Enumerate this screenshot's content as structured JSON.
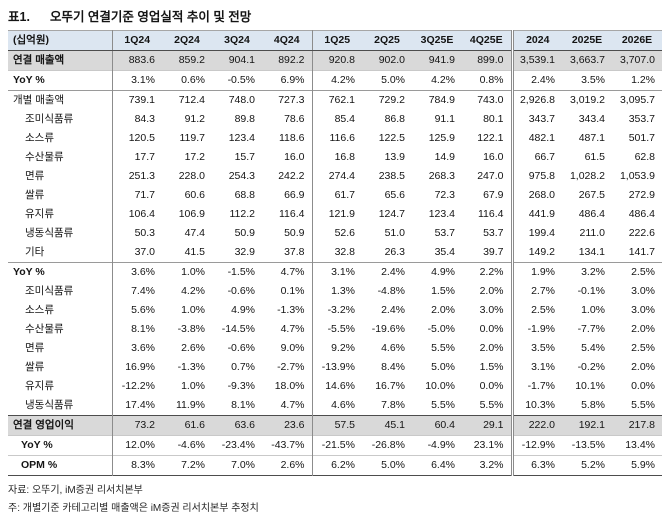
{
  "header": {
    "table_no": "표1.",
    "title": "오뚜기 연결기준 영업실적 추이 및 전망"
  },
  "colors": {
    "header_bg": "#dce6f1",
    "highlight_bg": "#d9d9d9"
  },
  "table": {
    "unit_label": "(십억원)",
    "columns": [
      "1Q24",
      "2Q24",
      "3Q24",
      "4Q24",
      "1Q25",
      "2Q25",
      "3Q25E",
      "4Q25E",
      "2024",
      "2025E",
      "2026E"
    ],
    "rows": [
      {
        "label": "연결 매출액",
        "style": "total",
        "rule": "none",
        "values": [
          "883.6",
          "859.2",
          "904.1",
          "892.2",
          "920.8",
          "902.0",
          "941.9",
          "899.0",
          "3,539.1",
          "3,663.7",
          "3,707.0"
        ]
      },
      {
        "label": "YoY %",
        "style": "yoy",
        "rule": "light",
        "values": [
          "3.1%",
          "0.6%",
          "-0.5%",
          "6.9%",
          "4.2%",
          "5.0%",
          "4.2%",
          "0.8%",
          "2.4%",
          "3.5%",
          "1.2%"
        ]
      },
      {
        "label": "개별 매출액",
        "style": "plain",
        "rule": "med",
        "values": [
          "739.1",
          "712.4",
          "748.0",
          "727.3",
          "762.1",
          "729.2",
          "784.9",
          "743.0",
          "2,926.8",
          "3,019.2",
          "3,095.7"
        ]
      },
      {
        "label": "조미식품류",
        "style": "sub",
        "rule": "none",
        "values": [
          "84.3",
          "91.2",
          "89.8",
          "78.6",
          "85.4",
          "86.8",
          "91.1",
          "80.1",
          "343.7",
          "343.4",
          "353.7"
        ]
      },
      {
        "label": "소스류",
        "style": "sub",
        "rule": "none",
        "values": [
          "120.5",
          "119.7",
          "123.4",
          "118.6",
          "116.6",
          "122.5",
          "125.9",
          "122.1",
          "482.1",
          "487.1",
          "501.7"
        ]
      },
      {
        "label": "수산물류",
        "style": "sub",
        "rule": "none",
        "values": [
          "17.7",
          "17.2",
          "15.7",
          "16.0",
          "16.8",
          "13.9",
          "14.9",
          "16.0",
          "66.7",
          "61.5",
          "62.8"
        ]
      },
      {
        "label": "면류",
        "style": "sub",
        "rule": "none",
        "values": [
          "251.3",
          "228.0",
          "254.3",
          "242.2",
          "274.4",
          "238.5",
          "268.3",
          "247.0",
          "975.8",
          "1,028.2",
          "1,053.9"
        ]
      },
      {
        "label": "쌀류",
        "style": "sub",
        "rule": "none",
        "values": [
          "71.7",
          "60.6",
          "68.8",
          "66.9",
          "61.7",
          "65.6",
          "72.3",
          "67.9",
          "268.0",
          "267.5",
          "272.9"
        ]
      },
      {
        "label": "유지류",
        "style": "sub",
        "rule": "none",
        "values": [
          "106.4",
          "106.9",
          "112.2",
          "116.4",
          "121.9",
          "124.7",
          "123.4",
          "116.4",
          "441.9",
          "486.4",
          "486.4"
        ]
      },
      {
        "label": "냉동식품류",
        "style": "sub",
        "rule": "none",
        "values": [
          "50.3",
          "47.4",
          "50.9",
          "50.9",
          "52.6",
          "51.0",
          "53.7",
          "53.7",
          "199.4",
          "211.0",
          "222.6"
        ]
      },
      {
        "label": "기타",
        "style": "sub",
        "rule": "none",
        "values": [
          "37.0",
          "41.5",
          "32.9",
          "37.8",
          "32.8",
          "26.3",
          "35.4",
          "39.7",
          "149.2",
          "134.1",
          "141.7"
        ]
      },
      {
        "label": "YoY %",
        "style": "yoy",
        "rule": "med",
        "values": [
          "3.6%",
          "1.0%",
          "-1.5%",
          "4.7%",
          "3.1%",
          "2.4%",
          "4.9%",
          "2.2%",
          "1.9%",
          "3.2%",
          "2.5%"
        ]
      },
      {
        "label": "조미식품류",
        "style": "sub",
        "rule": "none",
        "values": [
          "7.4%",
          "4.2%",
          "-0.6%",
          "0.1%",
          "1.3%",
          "-4.8%",
          "1.5%",
          "2.0%",
          "2.7%",
          "-0.1%",
          "3.0%"
        ]
      },
      {
        "label": "소스류",
        "style": "sub",
        "rule": "none",
        "values": [
          "5.6%",
          "1.0%",
          "4.9%",
          "-1.3%",
          "-3.2%",
          "2.4%",
          "2.0%",
          "3.0%",
          "2.5%",
          "1.0%",
          "3.0%"
        ]
      },
      {
        "label": "수산물류",
        "style": "sub",
        "rule": "none",
        "values": [
          "8.1%",
          "-3.8%",
          "-14.5%",
          "4.7%",
          "-5.5%",
          "-19.6%",
          "-5.0%",
          "0.0%",
          "-1.9%",
          "-7.7%",
          "2.0%"
        ]
      },
      {
        "label": "면류",
        "style": "sub",
        "rule": "none",
        "values": [
          "3.6%",
          "2.6%",
          "-0.6%",
          "9.0%",
          "9.2%",
          "4.6%",
          "5.5%",
          "2.0%",
          "3.5%",
          "5.4%",
          "2.5%"
        ]
      },
      {
        "label": "쌀류",
        "style": "sub",
        "rule": "none",
        "values": [
          "16.9%",
          "-1.3%",
          "0.7%",
          "-2.7%",
          "-13.9%",
          "8.4%",
          "5.0%",
          "1.5%",
          "3.1%",
          "-0.2%",
          "2.0%"
        ]
      },
      {
        "label": "유지류",
        "style": "sub",
        "rule": "none",
        "values": [
          "-12.2%",
          "1.0%",
          "-9.3%",
          "18.0%",
          "14.6%",
          "16.7%",
          "10.0%",
          "0.0%",
          "-1.7%",
          "10.1%",
          "0.0%"
        ]
      },
      {
        "label": "냉동식품류",
        "style": "sub",
        "rule": "none",
        "values": [
          "17.4%",
          "11.9%",
          "8.1%",
          "4.7%",
          "4.6%",
          "7.8%",
          "5.5%",
          "5.5%",
          "10.3%",
          "5.8%",
          "5.5%"
        ]
      },
      {
        "label": "연결 영업이익",
        "style": "total",
        "rule": "dark",
        "values": [
          "73.2",
          "61.6",
          "63.6",
          "23.6",
          "57.5",
          "45.1",
          "60.4",
          "29.1",
          "222.0",
          "192.1",
          "217.8"
        ]
      },
      {
        "label": "YoY %",
        "style": "metric",
        "rule": "light",
        "values": [
          "12.0%",
          "-4.6%",
          "-23.4%",
          "-43.7%",
          "-21.5%",
          "-26.8%",
          "-4.9%",
          "23.1%",
          "-12.9%",
          "-13.5%",
          "13.4%"
        ]
      },
      {
        "label": "OPM %",
        "style": "metric",
        "rule": "light",
        "values": [
          "8.3%",
          "7.2%",
          "7.0%",
          "2.6%",
          "6.2%",
          "5.0%",
          "6.4%",
          "3.2%",
          "6.3%",
          "5.2%",
          "5.9%"
        ]
      }
    ]
  },
  "footnotes": [
    "자료: 오뚜기, iM증권 리서치본부",
    "주: 개별기준 카테고리별 매출액은 iM증권 리서치본부 추정치"
  ]
}
